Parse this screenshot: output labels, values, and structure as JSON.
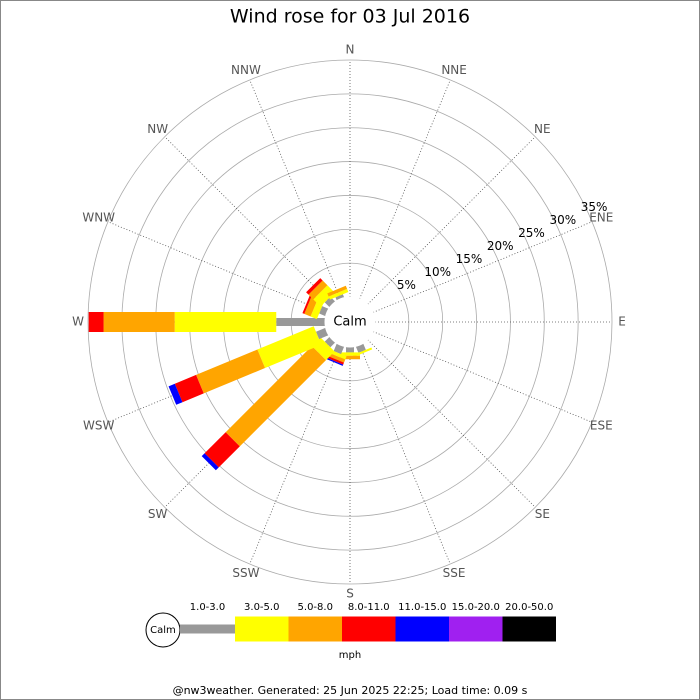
{
  "chart_data": {
    "type": "windrose",
    "title": "Wind rose for 03 Jul 2016",
    "categories": [
      "N",
      "NNE",
      "NE",
      "ENE",
      "E",
      "ESE",
      "SE",
      "SSE",
      "S",
      "SSW",
      "SW",
      "WSW",
      "W",
      "WNW",
      "NW",
      "NNW"
    ],
    "series": [
      {
        "name": "1.0-3.0",
        "color": "#999999",
        "values": [
          0,
          0,
          0,
          0,
          0,
          0,
          0,
          1,
          0.8,
          1.2,
          1,
          1.5,
          7.2,
          1,
          1,
          0.5
        ]
      },
      {
        "name": "3.0-5.0",
        "color": "#ffff00",
        "values": [
          0,
          0,
          0,
          0,
          0,
          0,
          0,
          0.3,
          0.5,
          0.5,
          1.8,
          9,
          15,
          1,
          1.5,
          0.5
        ]
      },
      {
        "name": "5.0-8.0",
        "color": "#ffa500",
        "values": [
          0,
          0,
          0,
          0,
          0,
          0,
          0,
          0,
          0.5,
          0.5,
          18,
          9.8,
          10.5,
          1,
          1,
          0.5
        ]
      },
      {
        "name": "8.0-11.0",
        "color": "#ff0000",
        "values": [
          0,
          0,
          0,
          0,
          0,
          0,
          0,
          0,
          0,
          0.3,
          4.4,
          3.4,
          2.2,
          0.3,
          0.5,
          0
        ]
      },
      {
        "name": "11.0-15.0",
        "color": "#0000ff",
        "values": [
          0,
          0,
          0,
          0,
          0,
          0,
          0,
          0,
          0,
          0.2,
          0.6,
          1,
          0,
          0,
          0,
          0
        ]
      },
      {
        "name": "15.0-20.0",
        "color": "#a020f0",
        "values": [
          0,
          0,
          0,
          0,
          0,
          0,
          0,
          0,
          0,
          0,
          0,
          0,
          0,
          0,
          0,
          0
        ]
      },
      {
        "name": "20.0-50.0",
        "color": "#000000",
        "values": [
          0,
          0,
          0,
          0,
          0,
          0,
          0,
          0,
          0,
          0,
          0,
          0,
          0,
          0,
          0,
          0
        ]
      }
    ],
    "rlim": [
      0,
      35
    ],
    "rticks": [
      {
        "value": 5,
        "label": "5%"
      },
      {
        "value": 10,
        "label": "10%"
      },
      {
        "value": 15,
        "label": "15%"
      },
      {
        "value": 20,
        "label": "20%"
      },
      {
        "value": 25,
        "label": "25%"
      },
      {
        "value": 30,
        "label": "30%"
      },
      {
        "value": 35,
        "label": "35%"
      }
    ],
    "calm_label": "Calm",
    "unit_label": "mph",
    "footer": "@nw3weather. Generated: 25 Jun 2025 22:25; Load time: 0.09 s"
  }
}
